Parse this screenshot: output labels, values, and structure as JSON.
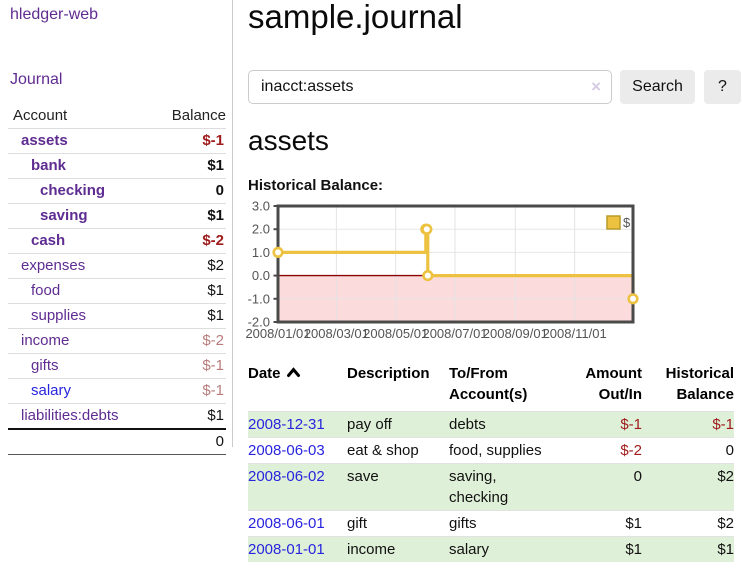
{
  "app": {
    "brand": "hledger-web"
  },
  "sidebar": {
    "journal_label": "Journal",
    "accounts": {
      "header_account": "Account",
      "header_balance": "Balance",
      "rows": [
        {
          "account": "assets",
          "balance": "$-1"
        },
        {
          "account": "bank",
          "balance": "$1"
        },
        {
          "account": "checking",
          "balance": "0"
        },
        {
          "account": "saving",
          "balance": "$1"
        },
        {
          "account": "cash",
          "balance": "$-2"
        },
        {
          "account": "expenses",
          "balance": "$2"
        },
        {
          "account": "food",
          "balance": "$1"
        },
        {
          "account": "supplies",
          "balance": "$1"
        },
        {
          "account": "income",
          "balance": "$-2"
        },
        {
          "account": "gifts",
          "balance": "$-1"
        },
        {
          "account": "salary",
          "balance": "$-1"
        },
        {
          "account": "liabilities:debts",
          "balance": "$1"
        }
      ],
      "total": "0"
    }
  },
  "main": {
    "title": "sample.journal",
    "search": {
      "value": "inacct:assets",
      "clear_icon": "×",
      "button_label": "Search",
      "help_label": "?"
    },
    "account_heading": "assets"
  },
  "chart_data": {
    "type": "line",
    "title": "Historical Balance:",
    "series": [
      {
        "name": "$",
        "color": "#edc240",
        "style": "steps",
        "points": [
          {
            "x": "2008-01-01",
            "y": 1
          },
          {
            "x": "2008-06-01",
            "y": 2
          },
          {
            "x": "2008-06-02",
            "y": 2
          },
          {
            "x": "2008-06-03",
            "y": 0
          },
          {
            "x": "2008-12-31",
            "y": -1
          }
        ]
      }
    ],
    "xlim": [
      "2008-01-01",
      "2008-12-31"
    ],
    "ylim": [
      -2,
      3
    ],
    "yticks": [
      3.0,
      2.0,
      1.0,
      0.0,
      -1.0,
      -2.0
    ],
    "xticks": [
      "2008/01/01",
      "2008/03/01",
      "2008/05/01",
      "2008/07/01",
      "2008/09/01",
      "2008/11/01"
    ],
    "legend": {
      "label": "$",
      "position": "top-right"
    },
    "grid": true,
    "zero_line_color": "#8b0000",
    "negative_region_color": "#fbdbdb"
  },
  "register": {
    "headers": {
      "date": "Date",
      "description": "Description",
      "accounts": "To/From Account(s)",
      "amount": "Amount Out/In",
      "balance": "Historical Balance"
    },
    "rows": [
      {
        "date": "2008-12-31",
        "description": "pay off",
        "accounts": "debts",
        "amount": "$-1",
        "balance": "$-1"
      },
      {
        "date": "2008-06-03",
        "description": "eat & shop",
        "accounts": "food, supplies",
        "amount": "$-2",
        "balance": "0"
      },
      {
        "date": "2008-06-02",
        "description": "save",
        "accounts": "saving, checking",
        "amount": "0",
        "balance": "$2"
      },
      {
        "date": "2008-06-01",
        "description": "gift",
        "accounts": "gifts",
        "amount": "$1",
        "balance": "$2"
      },
      {
        "date": "2008-01-01",
        "description": "income",
        "accounts": "salary",
        "amount": "$1",
        "balance": "$1"
      }
    ]
  },
  "colors": {
    "accent_purple": "#5f2c91",
    "link_blue": "#2825dd",
    "negative_strong": "#a01c1c",
    "negative_muted": "#b97c7c",
    "row_green": "#dff0d8",
    "series_gold": "#edc240"
  }
}
